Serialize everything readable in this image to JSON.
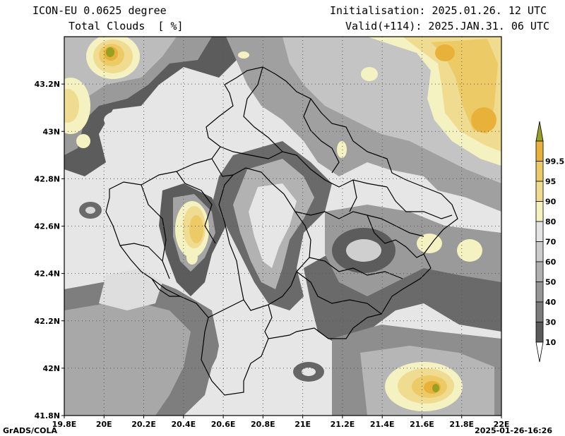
{
  "header": {
    "model": "ICON-EU 0.0625 degree",
    "variable": "Total Clouds  [ %]",
    "initialisation": "Initialisation: 2025.01.26. 12 UTC",
    "valid": "Valid(+114): 2025.JAN.31. 06 UTC"
  },
  "map": {
    "lat_range": [
      41.8,
      43.4
    ],
    "lon_range": [
      19.8,
      22.0
    ],
    "lat_ticks": [
      "41.8N",
      "42N",
      "42.2N",
      "42.4N",
      "42.6N",
      "42.8N",
      "43N",
      "43.2N"
    ],
    "lon_ticks": [
      "19.8E",
      "20E",
      "20.2E",
      "20.4E",
      "20.6E",
      "20.8E",
      "21E",
      "21.2E",
      "21.4E",
      "21.6E",
      "21.8E",
      "22E"
    ],
    "gridlines": "dotted"
  },
  "legend": {
    "levels": [
      "10",
      "30",
      "40",
      "50",
      "60",
      "70",
      "80",
      "90",
      "95",
      "99.5"
    ],
    "colors": [
      "#ffffff",
      "#5a5a5a",
      "#7c7c7c",
      "#969696",
      "#b0b0b0",
      "#cccccc",
      "#e4e4e4",
      "#f4f2c0",
      "#f0dc90",
      "#eccb66",
      "#e8b23a",
      "#98a020"
    ]
  },
  "footer": {
    "credit": "GrADS/COLA",
    "timestamp": "2025-01-26-16:26"
  }
}
